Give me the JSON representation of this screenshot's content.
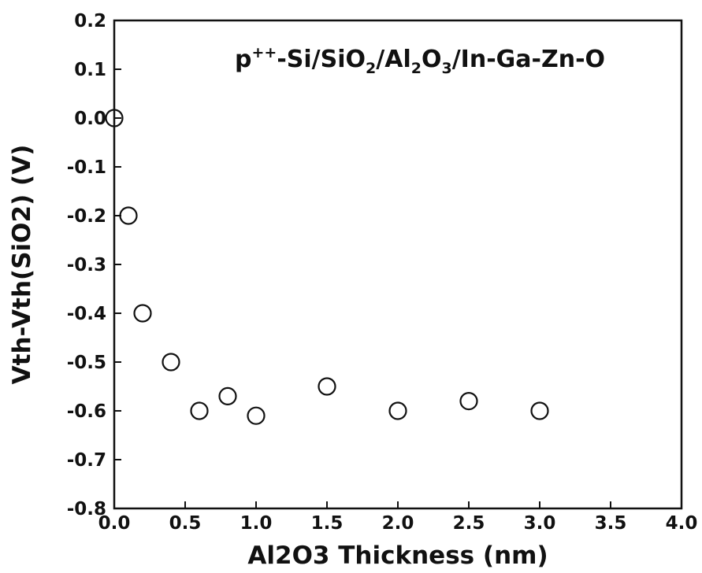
{
  "chart_data": {
    "type": "scatter",
    "title": "",
    "annotation": {
      "base": "p",
      "sup": "++",
      "part1": "-Si/SiO",
      "sub1": "2",
      "part2": "/Al",
      "sub2": "2",
      "part3": "O",
      "sub3": "3",
      "part4": "/In-Ga-Zn-O"
    },
    "xlabel": "Al2O3 Thickness (nm)",
    "ylabel": "Vth-Vth(SiO2) (V)",
    "xlim": [
      0.0,
      4.0
    ],
    "ylim": [
      -0.8,
      0.2
    ],
    "xticks": [
      "0.0",
      "0.5",
      "1.0",
      "1.5",
      "2.0",
      "2.5",
      "3.0",
      "3.5",
      "4.0"
    ],
    "yticks": [
      "0.2",
      "0.1",
      "0.0",
      "-0.1",
      "-0.2",
      "-0.3",
      "-0.4",
      "-0.5",
      "-0.6",
      "-0.7",
      "-0.8"
    ],
    "grid": false,
    "marker": "open-circle",
    "series": [
      {
        "x": [
          0.0,
          0.1,
          0.2,
          0.4,
          0.6,
          0.8,
          1.0,
          1.5,
          2.0,
          2.5,
          3.0
        ],
        "y": [
          0.0,
          -0.2,
          -0.4,
          -0.5,
          -0.6,
          -0.57,
          -0.61,
          -0.55,
          -0.6,
          -0.58,
          -0.6
        ]
      }
    ]
  }
}
